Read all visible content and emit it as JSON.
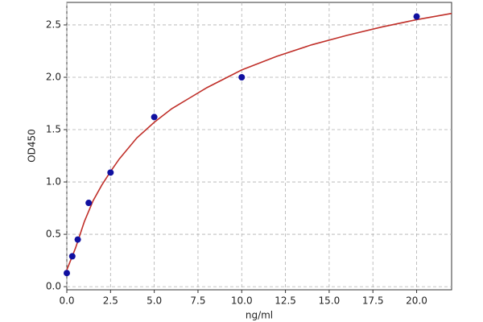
{
  "chart_data": {
    "type": "scatter",
    "x_label": "ng/ml",
    "y_label": "OD450",
    "xlim": [
      0,
      22
    ],
    "ylim": [
      -0.03,
      2.715
    ],
    "xticks": [
      {
        "value": 0,
        "label": "0.0"
      },
      2.5,
      {
        "value": 5,
        "label": "5.0"
      },
      7.5,
      {
        "value": 10,
        "label": "10.0"
      },
      12.5,
      {
        "value": 15,
        "label": "15.0"
      },
      17.5,
      {
        "value": 20,
        "label": "20.0"
      }
    ],
    "yticks": [
      {
        "value": 0,
        "label": "0.0"
      },
      0.5,
      {
        "value": 1,
        "label": "1.0"
      },
      1.5,
      {
        "value": 2,
        "label": "2.0"
      },
      2.5
    ],
    "grid": true,
    "series": [
      {
        "type": "scatter",
        "color": "#1010a0",
        "x": [
          0,
          0.3125,
          0.625,
          1.25,
          2.5,
          5,
          10,
          20
        ],
        "values": [
          0.13,
          0.29,
          0.45,
          0.8,
          1.09,
          1.62,
          2.0,
          2.58
        ]
      },
      {
        "type": "line",
        "color": "#c0302a",
        "x": [
          0,
          0.5,
          1,
          1.5,
          2,
          2.5,
          3,
          4,
          5,
          6,
          7,
          8,
          10,
          12,
          14,
          16,
          18,
          20,
          22
        ],
        "values": [
          0.16,
          0.37,
          0.62,
          0.82,
          0.97,
          1.1,
          1.22,
          1.42,
          1.57,
          1.7,
          1.8,
          1.9,
          2.07,
          2.2,
          2.31,
          2.4,
          2.48,
          2.55,
          2.61
        ]
      }
    ]
  }
}
